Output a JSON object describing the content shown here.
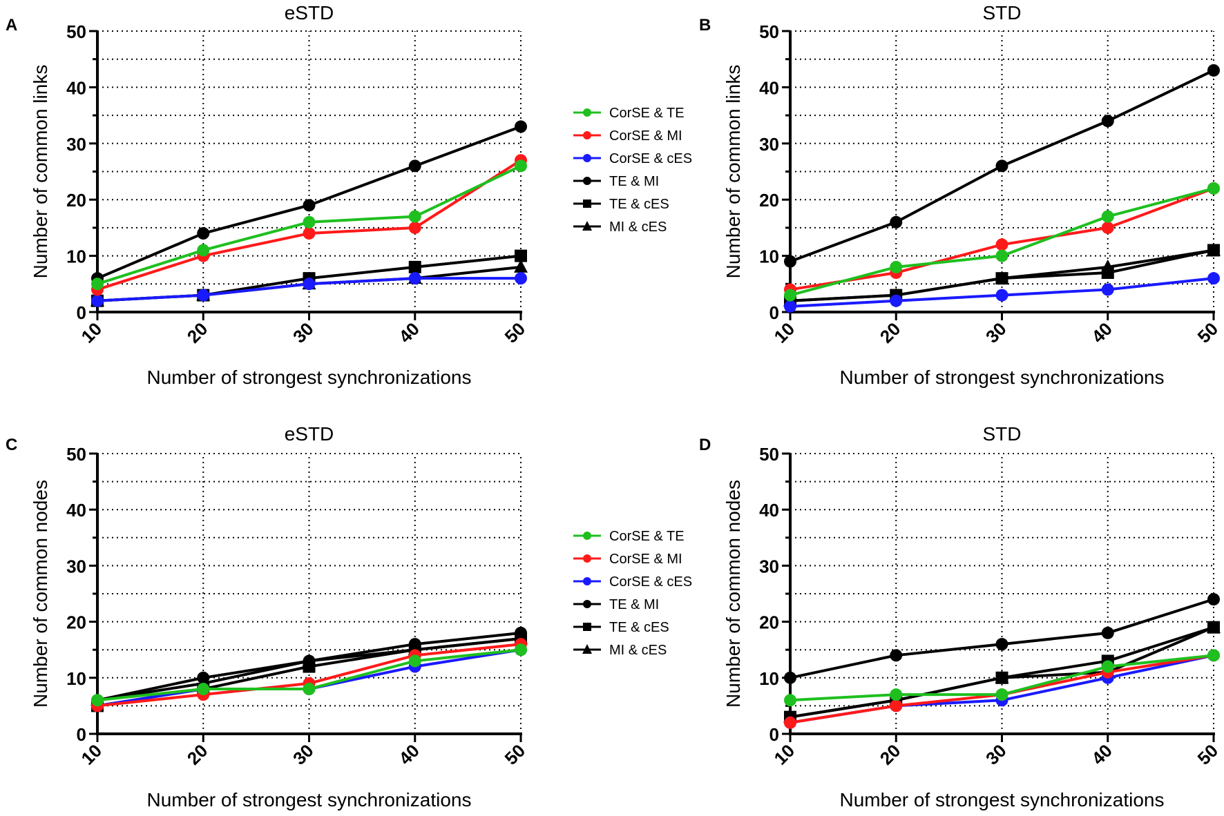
{
  "colors": {
    "CorSE & TE": "#1fbf1f",
    "CorSE & MI": "#ff1a1a",
    "CorSE & cES": "#1a1aff",
    "TE & MI": "#000000",
    "TE & cES": "#000000",
    "MI & cES": "#000000"
  },
  "chart_data": [
    {
      "type": "line",
      "panel": "A",
      "title": "eSTD",
      "xlabel": "Number of strongest synchronizations",
      "ylabel": "Number of common links",
      "x": [
        10,
        20,
        30,
        40,
        50
      ],
      "ylim": [
        0,
        50
      ],
      "yticks": [
        0,
        10,
        20,
        30,
        40,
        50
      ],
      "grid": true,
      "legend": "right",
      "series": [
        {
          "name": "CorSE & TE",
          "marker": "circle",
          "values": [
            5,
            11,
            16,
            17,
            26
          ]
        },
        {
          "name": "CorSE & MI",
          "marker": "circle",
          "values": [
            4,
            10,
            14,
            15,
            27
          ]
        },
        {
          "name": "CorSE & cES",
          "marker": "circle",
          "values": [
            2,
            3,
            5,
            6,
            6
          ]
        },
        {
          "name": "TE & MI",
          "marker": "circle",
          "values": [
            6,
            14,
            19,
            26,
            33
          ]
        },
        {
          "name": "TE & cES",
          "marker": "square",
          "values": [
            2,
            3,
            6,
            8,
            10
          ]
        },
        {
          "name": "MI & cES",
          "marker": "triangle",
          "values": [
            2,
            3,
            5,
            6,
            8
          ]
        }
      ]
    },
    {
      "type": "line",
      "panel": "B",
      "title": "STD",
      "xlabel": "Number of strongest synchronizations",
      "ylabel": "Number of common links",
      "x": [
        10,
        20,
        30,
        40,
        50
      ],
      "ylim": [
        0,
        50
      ],
      "yticks": [
        0,
        10,
        20,
        30,
        40,
        50
      ],
      "grid": true,
      "series": [
        {
          "name": "CorSE & TE",
          "marker": "circle",
          "values": [
            3,
            8,
            10,
            17,
            22
          ]
        },
        {
          "name": "CorSE & MI",
          "marker": "circle",
          "values": [
            4,
            7,
            12,
            15,
            22
          ]
        },
        {
          "name": "CorSE & cES",
          "marker": "circle",
          "values": [
            1,
            2,
            3,
            4,
            6
          ]
        },
        {
          "name": "TE & MI",
          "marker": "circle",
          "values": [
            9,
            16,
            26,
            34,
            43
          ]
        },
        {
          "name": "TE & cES",
          "marker": "square",
          "values": [
            2,
            3,
            6,
            7,
            11
          ]
        },
        {
          "name": "MI & cES",
          "marker": "triangle",
          "values": [
            2,
            3,
            6,
            8,
            11
          ]
        }
      ]
    },
    {
      "type": "line",
      "panel": "C",
      "title": "eSTD",
      "xlabel": "Number of strongest synchronizations",
      "ylabel": "Number of common nodes",
      "x": [
        10,
        20,
        30,
        40,
        50
      ],
      "ylim": [
        0,
        50
      ],
      "yticks": [
        0,
        10,
        20,
        30,
        40,
        50
      ],
      "grid": true,
      "legend": "right",
      "series": [
        {
          "name": "CorSE & TE",
          "marker": "circle",
          "values": [
            6,
            8,
            8,
            13,
            15
          ]
        },
        {
          "name": "CorSE & MI",
          "marker": "circle",
          "values": [
            5,
            7,
            9,
            14,
            16
          ]
        },
        {
          "name": "CorSE & cES",
          "marker": "circle",
          "values": [
            5,
            8,
            8,
            12,
            15
          ]
        },
        {
          "name": "TE & MI",
          "marker": "circle",
          "values": [
            6,
            10,
            13,
            16,
            18
          ]
        },
        {
          "name": "TE & cES",
          "marker": "square",
          "values": [
            5,
            8,
            12,
            15,
            17
          ]
        },
        {
          "name": "MI & cES",
          "marker": "triangle",
          "values": [
            6,
            9,
            13,
            15,
            17
          ]
        }
      ]
    },
    {
      "type": "line",
      "panel": "D",
      "title": "STD",
      "xlabel": "Number of strongest synchronizations",
      "ylabel": "Number of common nodes",
      "x": [
        10,
        20,
        30,
        40,
        50
      ],
      "ylim": [
        0,
        50
      ],
      "yticks": [
        0,
        10,
        20,
        30,
        40,
        50
      ],
      "grid": true,
      "series": [
        {
          "name": "CorSE & TE",
          "marker": "circle",
          "values": [
            6,
            7,
            7,
            12,
            14
          ]
        },
        {
          "name": "CorSE & MI",
          "marker": "circle",
          "values": [
            2,
            5,
            7,
            11,
            14
          ]
        },
        {
          "name": "CorSE & cES",
          "marker": "circle",
          "values": [
            2,
            5,
            6,
            10,
            14
          ]
        },
        {
          "name": "TE & MI",
          "marker": "circle",
          "values": [
            10,
            14,
            16,
            18,
            24
          ]
        },
        {
          "name": "TE & cES",
          "marker": "square",
          "values": [
            3,
            6,
            10,
            13,
            19
          ]
        },
        {
          "name": "MI & cES",
          "marker": "triangle",
          "values": [
            3,
            6,
            10,
            11,
            19
          ]
        }
      ]
    }
  ]
}
